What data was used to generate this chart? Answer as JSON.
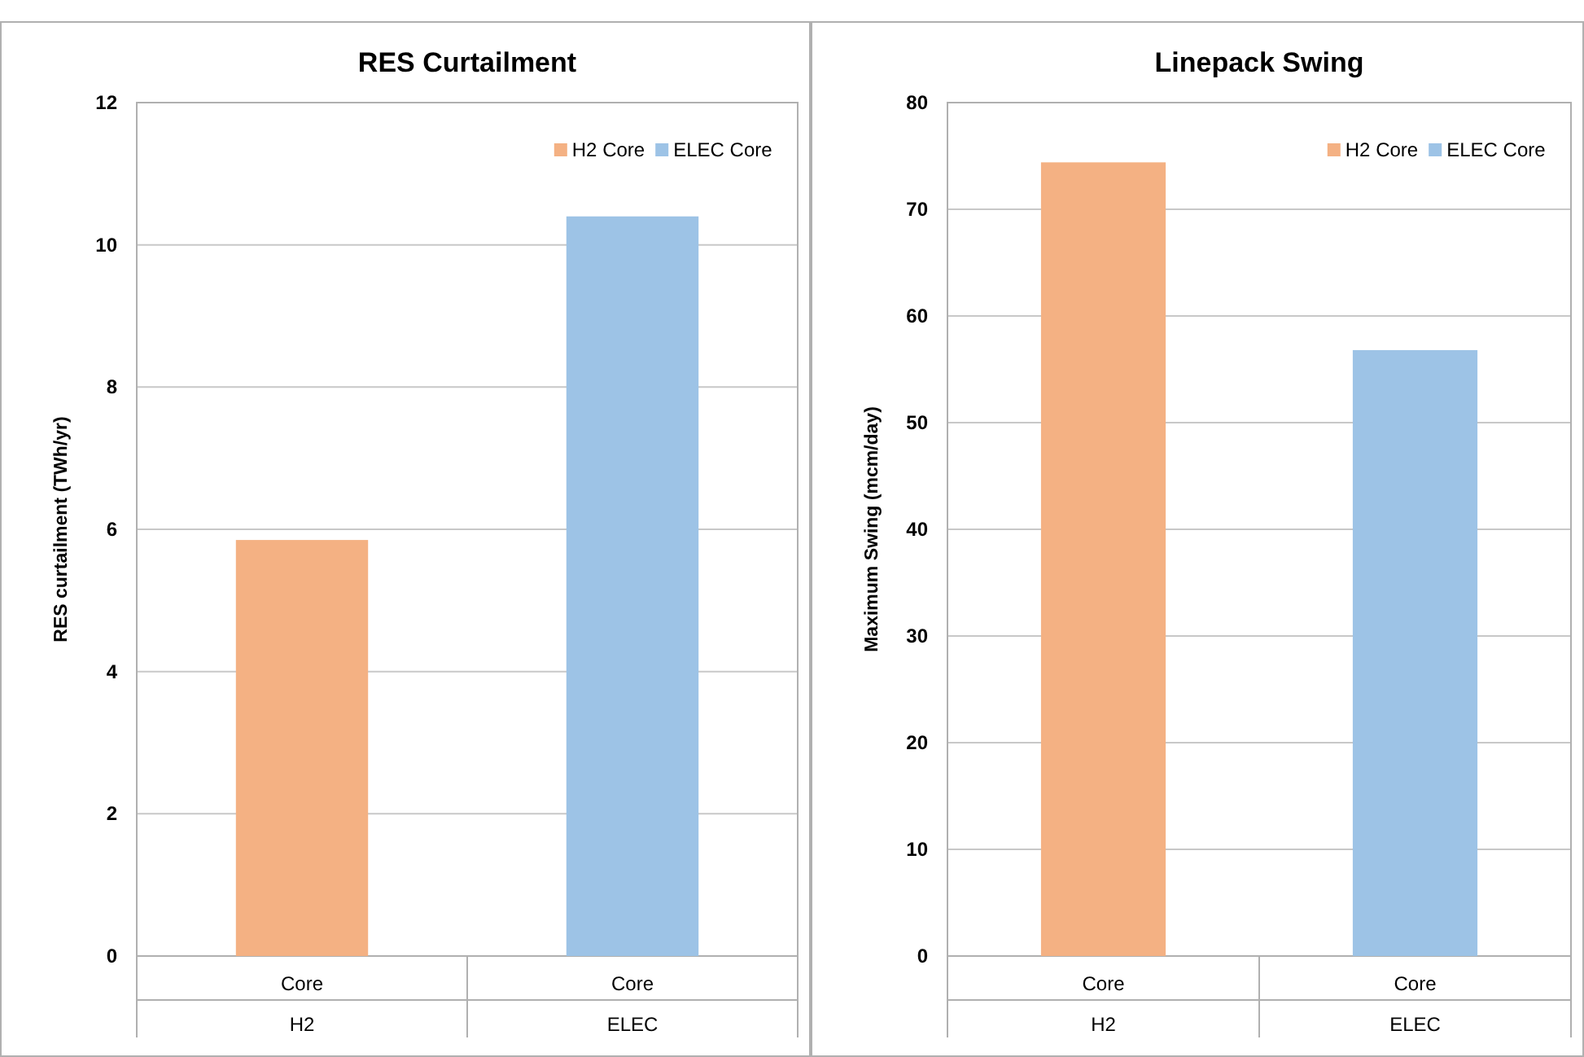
{
  "chart_data": [
    {
      "type": "bar",
      "title": "RES Curtailment",
      "ylabel": "RES curtailment (TWh/yr)",
      "categories": [
        "Core\nH2",
        "Core\nELEC"
      ],
      "series": [
        {
          "name": "H2 Core",
          "color": "#f4b183",
          "values": [
            5.85,
            null
          ]
        },
        {
          "name": "ELEC Core",
          "color": "#9dc3e6",
          "values": [
            null,
            10.4
          ]
        }
      ],
      "ylim": [
        0,
        12
      ],
      "yticks": [
        0,
        2,
        4,
        6,
        8,
        10,
        12
      ],
      "grid": "y",
      "legend": "top right"
    },
    {
      "type": "bar",
      "title": "Linepack Swing",
      "ylabel": "Maximum Swing (mcm/day)",
      "categories": [
        "Core\nH2",
        "Core\nELEC"
      ],
      "series": [
        {
          "name": "H2 Core",
          "color": "#f4b183",
          "values": [
            74.4,
            null
          ]
        },
        {
          "name": "ELEC Core",
          "color": "#9dc3e6",
          "values": [
            null,
            56.8
          ]
        }
      ],
      "ylim": [
        0,
        80
      ],
      "yticks": [
        0,
        10,
        20,
        30,
        40,
        50,
        60,
        70,
        80
      ],
      "grid": "y",
      "legend": "top right"
    }
  ]
}
